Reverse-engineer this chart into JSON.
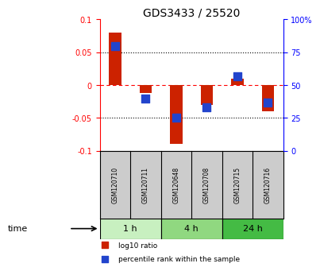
{
  "title": "GDS3433 / 25520",
  "samples": [
    "GSM120710",
    "GSM120711",
    "GSM120648",
    "GSM120708",
    "GSM120715",
    "GSM120716"
  ],
  "log10_ratio": [
    0.08,
    -0.012,
    -0.09,
    -0.03,
    0.01,
    -0.04
  ],
  "percentile_rank": [
    80,
    40,
    25,
    33,
    57,
    37
  ],
  "ylim_left": [
    -0.1,
    0.1
  ],
  "ylim_right": [
    0,
    100
  ],
  "yticks_left": [
    -0.1,
    -0.05,
    0,
    0.05,
    0.1
  ],
  "yticks_right": [
    0,
    25,
    50,
    75,
    100
  ],
  "ytick_labels_right": [
    "0",
    "25",
    "50",
    "75",
    "100%"
  ],
  "bar_color": "#cc2200",
  "dot_color": "#2244cc",
  "bar_width": 0.4,
  "dot_size": 50,
  "time_groups": [
    {
      "label": "1 h",
      "start": 0,
      "end": 1,
      "color": "#c8f0c0"
    },
    {
      "label": "4 h",
      "start": 2,
      "end": 3,
      "color": "#90d880"
    },
    {
      "label": "24 h",
      "start": 4,
      "end": 5,
      "color": "#44bb44"
    }
  ],
  "time_label": "time",
  "legend_items": [
    {
      "label": "log10 ratio",
      "color": "#cc2200",
      "marker": "s"
    },
    {
      "label": "percentile rank within the sample",
      "color": "#2244cc",
      "marker": "s"
    }
  ],
  "background_color": "#ffffff",
  "plot_bg_color": "#ffffff",
  "sample_box_color": "#cccccc",
  "title_fontsize": 10,
  "tick_fontsize": 7
}
